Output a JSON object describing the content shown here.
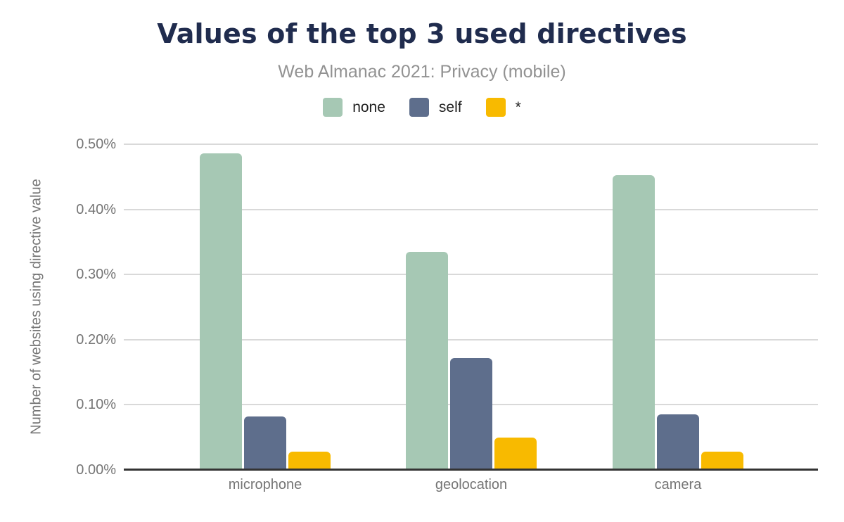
{
  "chart_data": {
    "type": "bar",
    "title": "Values of the top 3 used directives",
    "subtitle": "Web Almanac 2021: Privacy (mobile)",
    "ylabel": "Number of websites using directive value",
    "xlabel": "",
    "categories": [
      "microphone",
      "geolocation",
      "camera"
    ],
    "series": [
      {
        "name": "none",
        "color": "#a6c8b4",
        "values": [
          0.486,
          0.335,
          0.453
        ]
      },
      {
        "name": "self",
        "color": "#5e6e8c",
        "values": [
          0.082,
          0.172,
          0.085
        ]
      },
      {
        "name": "*",
        "color": "#f8ba00",
        "values": [
          0.028,
          0.05,
          0.028
        ]
      }
    ],
    "value_unit": "%",
    "ylim": [
      0,
      0.5
    ],
    "yticks": [
      {
        "value": 0.0,
        "label": "0.00%"
      },
      {
        "value": 0.1,
        "label": "0.10%"
      },
      {
        "value": 0.2,
        "label": "0.20%"
      },
      {
        "value": 0.3,
        "label": "0.30%"
      },
      {
        "value": 0.4,
        "label": "0.40%"
      },
      {
        "value": 0.5,
        "label": "0.50%"
      }
    ],
    "grid": true,
    "legend_position": "top"
  },
  "colors": {
    "title": "#202c4e",
    "subtitle": "#929292",
    "axis_text": "#757575",
    "gridline": "#d9d9d9",
    "baseline": "#333333",
    "legend_text": "#212121",
    "series_none": "#a6c8b4",
    "series_self": "#5e6e8c",
    "series_star": "#f8ba00"
  }
}
